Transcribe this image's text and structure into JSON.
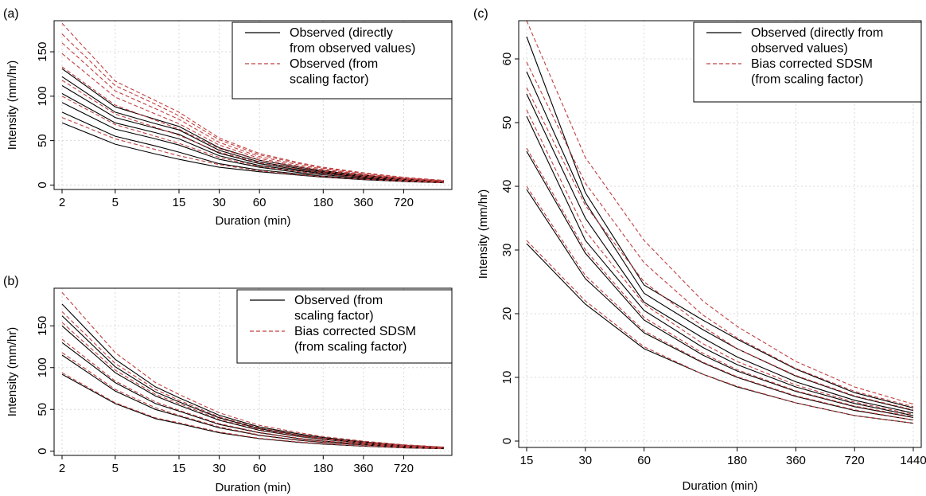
{
  "chart_data": [
    {
      "panel": "(a)",
      "type": "line",
      "xlabel": "Duration (min)",
      "ylabel": "Intensity (mm/hr)",
      "x_scale": "log",
      "x_ticks": [
        2,
        5,
        15,
        30,
        60,
        180,
        360,
        720
      ],
      "x_tick_labels": [
        "2",
        "5",
        "15",
        "30",
        "60",
        "180",
        "360",
        "720"
      ],
      "y_ticks": [
        0,
        50,
        100,
        150
      ],
      "y_tick_labels": [
        "0",
        "50",
        "100",
        "150"
      ],
      "ylim": [
        -5,
        185
      ],
      "x": [
        2,
        5,
        10,
        15,
        30,
        60,
        120,
        180,
        360,
        720,
        1440
      ],
      "grid": true,
      "legend": {
        "position": "top-right",
        "entries": [
          {
            "label": [
              "Observed (directly",
              "from observed values)"
            ],
            "color": "#000000",
            "style": "solid"
          },
          {
            "label": [
              "Observed (from",
              "scaling factor)"
            ],
            "color": "#c04040",
            "style": "dashed"
          }
        ]
      },
      "series": [
        {
          "color": "#000000",
          "style": "solid",
          "values": [
            70,
            46,
            35,
            29,
            20,
            15,
            11,
            9,
            6,
            4,
            2.5
          ]
        },
        {
          "color": "#000000",
          "style": "solid",
          "values": [
            82,
            55,
            44,
            37,
            24,
            17,
            12.5,
            10,
            7,
            4.5,
            2.8
          ]
        },
        {
          "color": "#000000",
          "style": "solid",
          "values": [
            93,
            63,
            52,
            45,
            29,
            20,
            14,
            11.5,
            8,
            5,
            3
          ]
        },
        {
          "color": "#000000",
          "style": "solid",
          "values": [
            103,
            70,
            59,
            52,
            33,
            22,
            16,
            13,
            9,
            5.5,
            3.3
          ]
        },
        {
          "color": "#000000",
          "style": "solid",
          "values": [
            112,
            76,
            64,
            57,
            36,
            24,
            17,
            14,
            9.5,
            6,
            3.5
          ]
        },
        {
          "color": "#000000",
          "style": "solid",
          "values": [
            122,
            82,
            69,
            62,
            39,
            26,
            18.5,
            15,
            10,
            6.5,
            3.8
          ]
        },
        {
          "color": "#000000",
          "style": "solid",
          "values": [
            131,
            88,
            74,
            66,
            42,
            28,
            20,
            16,
            11,
            7,
            4
          ]
        },
        {
          "color": "#c04040",
          "style": "dashed",
          "values": [
            76,
            52,
            40,
            33,
            23,
            16,
            11.5,
            9.5,
            6.5,
            4.2,
            2.6
          ]
        },
        {
          "color": "#c04040",
          "style": "dashed",
          "values": [
            100,
            68,
            55,
            47,
            31,
            21,
            15,
            12,
            8.5,
            5.2,
            3.2
          ]
        },
        {
          "color": "#c04040",
          "style": "dashed",
          "values": [
            118,
            80,
            65,
            56,
            37,
            25,
            17.5,
            14,
            9.8,
            6.1,
            3.7
          ]
        },
        {
          "color": "#c04040",
          "style": "dashed",
          "values": [
            133,
            90,
            73,
            63,
            41,
            28,
            19.5,
            15.5,
            10.8,
            6.8,
            4.1
          ]
        },
        {
          "color": "#c04040",
          "style": "dashed",
          "values": [
            148,
            99,
            80,
            69,
            45,
            30,
            21,
            17,
            11.7,
            7.4,
            4.5
          ]
        },
        {
          "color": "#c04040",
          "style": "dashed",
          "values": [
            160,
            106,
            86,
            74,
            48,
            32,
            22.5,
            18,
            12.5,
            7.9,
            4.8
          ]
        },
        {
          "color": "#c04040",
          "style": "dashed",
          "values": [
            170,
            112,
            91,
            78,
            51,
            34,
            24,
            19,
            13.2,
            8.3,
            5
          ]
        },
        {
          "color": "#c04040",
          "style": "dashed",
          "values": [
            182,
            117,
            95,
            82,
            53,
            35.5,
            25,
            20,
            13.8,
            8.7,
            5.2
          ]
        }
      ]
    },
    {
      "panel": "(b)",
      "type": "line",
      "xlabel": "Duration (min)",
      "ylabel": "Intensity (mm/hr)",
      "x_scale": "log",
      "x_ticks": [
        2,
        5,
        15,
        30,
        60,
        180,
        360,
        720
      ],
      "x_tick_labels": [
        "2",
        "5",
        "15",
        "30",
        "60",
        "180",
        "360",
        "720"
      ],
      "y_ticks": [
        0,
        50,
        100,
        150
      ],
      "y_tick_labels": [
        "0",
        "50",
        "100",
        "150"
      ],
      "ylim": [
        -5,
        195
      ],
      "x": [
        2,
        5,
        10,
        15,
        30,
        60,
        120,
        180,
        360,
        720,
        1440
      ],
      "grid": true,
      "legend": {
        "position": "top-right",
        "entries": [
          {
            "label": [
              "Observed (from",
              "scaling factor)"
            ],
            "color": "#000000",
            "style": "solid"
          },
          {
            "label": [
              "Bias corrected SDSM",
              "(from scaling factor)"
            ],
            "color": "#c04040",
            "style": "dashed"
          }
        ]
      },
      "series": [
        {
          "color": "#000000",
          "style": "solid",
          "values": [
            92,
            57,
            39,
            33,
            22,
            15,
            10.5,
            8.5,
            6,
            4,
            3
          ]
        },
        {
          "color": "#000000",
          "style": "solid",
          "values": [
            115,
            72,
            50,
            42,
            28,
            19,
            13,
            10.5,
            7.5,
            5,
            3.5
          ]
        },
        {
          "color": "#000000",
          "style": "solid",
          "values": [
            130,
            82,
            57,
            48,
            32,
            22,
            15,
            12,
            8.5,
            5.5,
            3.8
          ]
        },
        {
          "color": "#000000",
          "style": "solid",
          "values": [
            150,
            94,
            66,
            55,
            37,
            25,
            17.5,
            14,
            9.8,
            6.3,
            4.2
          ]
        },
        {
          "color": "#000000",
          "style": "solid",
          "values": [
            162,
            101,
            71,
            59,
            40,
            27,
            19,
            15,
            10.5,
            6.8,
            4.5
          ]
        },
        {
          "color": "#000000",
          "style": "solid",
          "values": [
            176,
            110,
            77,
            64,
            43,
            29,
            20.5,
            16.3,
            11.3,
            7.3,
            4.8
          ]
        },
        {
          "color": "#c04040",
          "style": "dashed",
          "values": [
            94,
            58,
            40,
            34,
            23,
            15.5,
            11,
            9,
            6.2,
            4.1,
            3
          ]
        },
        {
          "color": "#c04040",
          "style": "dashed",
          "values": [
            118,
            74,
            52,
            43,
            29,
            19.5,
            13.5,
            11,
            7.7,
            5.1,
            3.6
          ]
        },
        {
          "color": "#c04040",
          "style": "dashed",
          "values": [
            134,
            84,
            59,
            49,
            33,
            22.5,
            15.5,
            12.5,
            8.8,
            5.7,
            3.9
          ]
        },
        {
          "color": "#c04040",
          "style": "dashed",
          "values": [
            154,
            97,
            68,
            57,
            38,
            26,
            18,
            14.5,
            10,
            6.5,
            4.3
          ]
        },
        {
          "color": "#c04040",
          "style": "dashed",
          "values": [
            167,
            105,
            74,
            61,
            41,
            28,
            19.5,
            15.5,
            10.8,
            7,
            4.6
          ]
        },
        {
          "color": "#c04040",
          "style": "dashed",
          "values": [
            190,
            118,
            82,
            68,
            46,
            31,
            22,
            17.5,
            12,
            7.8,
            5
          ]
        }
      ]
    },
    {
      "panel": "(c)",
      "type": "line",
      "xlabel": "Duration (min)",
      "ylabel": "Intensity (mm/hr)",
      "x_scale": "log",
      "x_ticks": [
        15,
        30,
        60,
        180,
        360,
        720,
        1440
      ],
      "x_tick_labels": [
        "15",
        "30",
        "60",
        "180",
        "360",
        "720",
        "1440"
      ],
      "y_ticks": [
        0,
        10,
        20,
        30,
        40,
        50,
        60
      ],
      "y_tick_labels": [
        "0",
        "10",
        "20",
        "30",
        "40",
        "50",
        "60"
      ],
      "ylim": [
        -1,
        66
      ],
      "x": [
        15,
        30,
        60,
        120,
        180,
        360,
        720,
        1440
      ],
      "grid": true,
      "legend": {
        "position": "top-right",
        "entries": [
          {
            "label": [
              "Observed (directly from",
              "observed values)"
            ],
            "color": "#000000",
            "style": "solid"
          },
          {
            "label": [
              "Bias corrected SDSM",
              "(from scaling factor)"
            ],
            "color": "#c04040",
            "style": "dashed"
          }
        ]
      },
      "series": [
        {
          "color": "#000000",
          "style": "solid",
          "values": [
            31,
            21.5,
            14.5,
            10.5,
            8.5,
            6,
            4,
            2.8
          ]
        },
        {
          "color": "#000000",
          "style": "solid",
          "values": [
            39.5,
            25.5,
            17,
            12.3,
            10,
            7,
            4.8,
            3.3
          ]
        },
        {
          "color": "#000000",
          "style": "solid",
          "values": [
            45.5,
            29.5,
            19,
            13.5,
            11,
            7.8,
            5.4,
            3.7
          ]
        },
        {
          "color": "#000000",
          "style": "solid",
          "values": [
            51,
            31.5,
            20.5,
            14.7,
            12,
            8.5,
            5.9,
            4
          ]
        },
        {
          "color": "#000000",
          "style": "solid",
          "values": [
            54.5,
            35,
            21.8,
            16.2,
            13.2,
            9.3,
            6.4,
            4.4
          ]
        },
        {
          "color": "#000000",
          "style": "solid",
          "values": [
            58,
            37.5,
            23.2,
            17.5,
            14.5,
            10.2,
            7,
            4.8
          ]
        },
        {
          "color": "#000000",
          "style": "solid",
          "values": [
            63.5,
            39,
            24.5,
            19,
            16,
            11.3,
            7.6,
            5.2
          ]
        },
        {
          "color": "#c04040",
          "style": "dashed",
          "values": [
            31.5,
            22,
            14.8,
            10.5,
            8.6,
            6,
            4,
            2.8
          ]
        },
        {
          "color": "#c04040",
          "style": "dashed",
          "values": [
            40,
            26,
            17.3,
            12.4,
            10.1,
            7.1,
            4.9,
            3.3
          ]
        },
        {
          "color": "#c04040",
          "style": "dashed",
          "values": [
            46,
            30,
            19.4,
            13.8,
            11.2,
            7.9,
            5.5,
            3.8
          ]
        },
        {
          "color": "#c04040",
          "style": "dashed",
          "values": [
            52,
            33,
            21.5,
            15.3,
            12.5,
            8.8,
            6.1,
            4.2
          ]
        },
        {
          "color": "#c04040",
          "style": "dashed",
          "values": [
            55.5,
            37,
            25,
            18,
            14.5,
            10.3,
            7.1,
            4.9
          ]
        },
        {
          "color": "#c04040",
          "style": "dashed",
          "values": [
            59.5,
            40.5,
            28,
            19.8,
            16.2,
            11.4,
            7.8,
            5.4
          ]
        },
        {
          "color": "#c04040",
          "style": "dashed",
          "values": [
            66,
            44.5,
            31.5,
            22,
            18,
            12.5,
            8.5,
            5.8
          ]
        }
      ]
    }
  ]
}
